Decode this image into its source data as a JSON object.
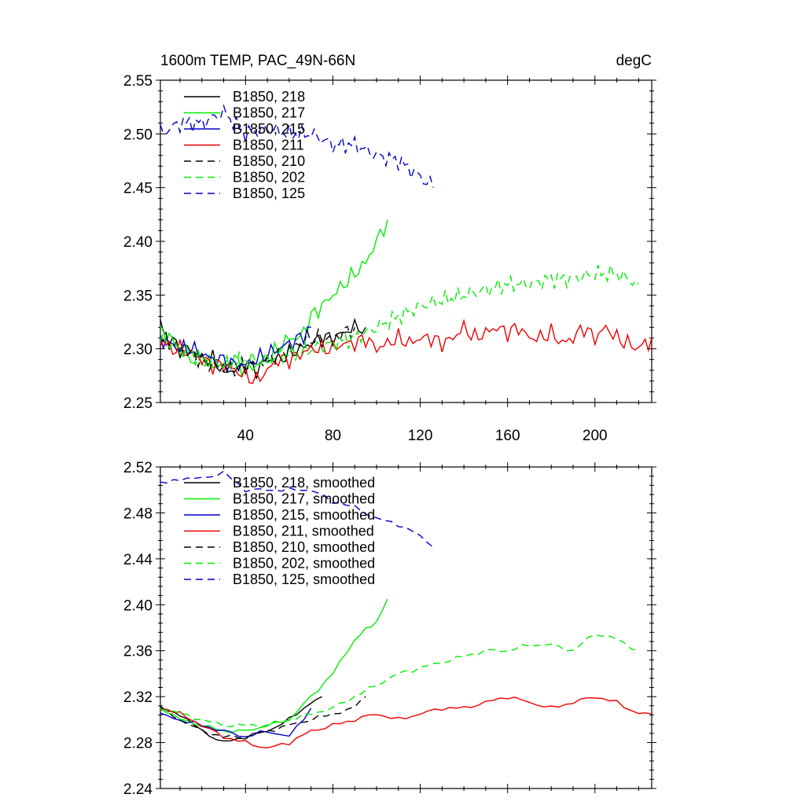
{
  "panels": [
    {
      "title_left": "1600m TEMP, PAC_49N-66N",
      "title_right": "degC",
      "ylim": [
        2.25,
        2.55
      ],
      "xlim": [
        1,
        226
      ],
      "y_ticks": [
        "2.25",
        "2.30",
        "2.35",
        "2.40",
        "2.45",
        "2.50",
        "2.55"
      ],
      "y_tick_values": [
        2.25,
        2.3,
        2.35,
        2.4,
        2.45,
        2.5,
        2.55
      ],
      "x_ticks": [
        "40",
        "80",
        "120",
        "160",
        "200"
      ],
      "x_tick_values": [
        40,
        80,
        120,
        160,
        200
      ],
      "show_x_labels": true
    },
    {
      "title_left": "",
      "title_right": "",
      "ylim": [
        2.24,
        2.52
      ],
      "xlim": [
        1,
        226
      ],
      "y_ticks": [
        "2.24",
        "2.28",
        "2.32",
        "2.36",
        "2.40",
        "2.44",
        "2.48",
        "2.52"
      ],
      "y_tick_values": [
        2.24,
        2.28,
        2.32,
        2.36,
        2.4,
        2.44,
        2.48,
        2.52
      ],
      "x_ticks": [],
      "x_tick_values": [
        40,
        80,
        120,
        160,
        200
      ],
      "show_x_labels": false
    }
  ],
  "colors": {
    "black": "#000000",
    "green": "#00ee00",
    "blue": "#0000cc",
    "red": "#ee0000"
  },
  "chart_data": [
    {
      "type": "line",
      "title": "1600m TEMP, PAC_49N-66N",
      "units": "degC",
      "ylim": [
        2.25,
        2.55
      ],
      "series": [
        {
          "name": "B1850, 218",
          "color": "#000000",
          "dash": false,
          "x": [
            1,
            5,
            10,
            15,
            20,
            25,
            30,
            35,
            40,
            45,
            50,
            55,
            60,
            65,
            70,
            75,
            80,
            85,
            90,
            95
          ],
          "y": [
            2.32,
            2.31,
            2.3,
            2.3,
            2.29,
            2.29,
            2.28,
            2.28,
            2.285,
            2.28,
            2.29,
            2.29,
            2.295,
            2.3,
            2.305,
            2.31,
            2.31,
            2.315,
            2.32,
            2.32
          ]
        },
        {
          "name": "B1850, 217",
          "color": "#00ee00",
          "dash": false,
          "x": [
            1,
            5,
            10,
            15,
            20,
            25,
            30,
            35,
            40,
            45,
            50,
            55,
            60,
            65,
            70,
            75,
            80,
            85,
            90,
            95,
            100,
            105
          ],
          "y": [
            2.32,
            2.31,
            2.3,
            2.29,
            2.29,
            2.285,
            2.285,
            2.29,
            2.28,
            2.285,
            2.29,
            2.3,
            2.31,
            2.31,
            2.33,
            2.34,
            2.35,
            2.36,
            2.37,
            2.38,
            2.4,
            2.42
          ]
        },
        {
          "name": "B1850, 215",
          "color": "#0000cc",
          "dash": false,
          "x": [
            1,
            5,
            10,
            15,
            20,
            25,
            30,
            35,
            40,
            45,
            50,
            55,
            60,
            65,
            70
          ],
          "y": [
            2.31,
            2.305,
            2.3,
            2.3,
            2.295,
            2.29,
            2.29,
            2.285,
            2.285,
            2.29,
            2.295,
            2.3,
            2.305,
            2.31,
            2.32
          ]
        },
        {
          "name": "B1850, 211",
          "color": "#ee0000",
          "dash": false,
          "x": [
            1,
            5,
            10,
            15,
            20,
            25,
            30,
            35,
            40,
            45,
            50,
            55,
            60,
            65,
            70,
            75,
            80,
            85,
            90,
            95,
            100,
            105,
            110,
            115,
            120,
            125,
            130,
            135,
            140,
            145,
            150,
            155,
            160,
            165,
            170,
            175,
            180,
            185,
            190,
            195,
            200,
            205,
            210,
            215,
            220,
            226
          ],
          "y": [
            2.31,
            2.3,
            2.3,
            2.295,
            2.29,
            2.285,
            2.285,
            2.28,
            2.275,
            2.27,
            2.28,
            2.29,
            2.29,
            2.295,
            2.3,
            2.3,
            2.3,
            2.305,
            2.305,
            2.31,
            2.3,
            2.305,
            2.31,
            2.305,
            2.31,
            2.31,
            2.305,
            2.31,
            2.32,
            2.31,
            2.315,
            2.32,
            2.315,
            2.32,
            2.31,
            2.31,
            2.315,
            2.305,
            2.31,
            2.32,
            2.31,
            2.32,
            2.31,
            2.305,
            2.3,
            2.31
          ]
        },
        {
          "name": "B1850, 210",
          "color": "#000000",
          "dash": true,
          "x": [
            1,
            5,
            10,
            15,
            20,
            25,
            30,
            35,
            40,
            45,
            50,
            55,
            60,
            65,
            70,
            75,
            80,
            85,
            90
          ],
          "y": [
            2.31,
            2.305,
            2.3,
            2.295,
            2.29,
            2.285,
            2.28,
            2.28,
            2.285,
            2.285,
            2.29,
            2.295,
            2.3,
            2.305,
            2.31,
            2.31,
            2.31,
            2.315,
            2.32
          ]
        },
        {
          "name": "B1850, 202",
          "color": "#00ee00",
          "dash": true,
          "x": [
            1,
            10,
            20,
            30,
            40,
            50,
            60,
            70,
            80,
            90,
            100,
            110,
            120,
            130,
            140,
            150,
            160,
            170,
            180,
            190,
            200,
            210,
            220
          ],
          "y": [
            2.31,
            2.3,
            2.29,
            2.285,
            2.29,
            2.29,
            2.295,
            2.3,
            2.305,
            2.31,
            2.32,
            2.33,
            2.34,
            2.345,
            2.35,
            2.355,
            2.36,
            2.36,
            2.365,
            2.365,
            2.37,
            2.37,
            2.36
          ]
        },
        {
          "name": "B1850, 125",
          "color": "#0000cc",
          "dash": true,
          "x": [
            1,
            10,
            20,
            30,
            40,
            50,
            60,
            70,
            80,
            90,
            100,
            110,
            120,
            126
          ],
          "y": [
            2.5,
            2.51,
            2.51,
            2.52,
            2.5,
            2.505,
            2.5,
            2.5,
            2.49,
            2.49,
            2.48,
            2.475,
            2.46,
            2.45
          ]
        }
      ]
    },
    {
      "type": "line",
      "ylim": [
        2.24,
        2.52
      ],
      "series": [
        {
          "name": "B1850, 218, smoothed",
          "color": "#000000",
          "dash": false,
          "x": [
            1,
            10,
            20,
            30,
            40,
            50,
            60,
            70,
            75
          ],
          "y": [
            2.31,
            2.305,
            2.29,
            2.28,
            2.285,
            2.29,
            2.3,
            2.315,
            2.32
          ]
        },
        {
          "name": "B1850, 217, smoothed",
          "color": "#00ee00",
          "dash": false,
          "x": [
            1,
            10,
            20,
            30,
            40,
            50,
            60,
            70,
            80,
            90,
            95,
            100,
            105
          ],
          "y": [
            2.31,
            2.3,
            2.295,
            2.29,
            2.29,
            2.295,
            2.3,
            2.32,
            2.34,
            2.37,
            2.38,
            2.385,
            2.405
          ]
        },
        {
          "name": "B1850, 215, smoothed",
          "color": "#0000cc",
          "dash": false,
          "x": [
            1,
            10,
            20,
            30,
            40,
            50,
            60,
            70
          ],
          "y": [
            2.305,
            2.3,
            2.295,
            2.29,
            2.285,
            2.29,
            2.285,
            2.31
          ]
        },
        {
          "name": "B1850, 211, smoothed",
          "color": "#ee0000",
          "dash": false,
          "x": [
            1,
            10,
            20,
            30,
            40,
            50,
            60,
            70,
            80,
            90,
            100,
            110,
            120,
            130,
            140,
            150,
            160,
            170,
            180,
            190,
            200,
            210,
            220,
            226
          ],
          "y": [
            2.31,
            2.305,
            2.295,
            2.285,
            2.28,
            2.275,
            2.28,
            2.29,
            2.295,
            2.3,
            2.305,
            2.3,
            2.305,
            2.31,
            2.31,
            2.315,
            2.32,
            2.315,
            2.31,
            2.315,
            2.32,
            2.315,
            2.305,
            2.305
          ]
        },
        {
          "name": "B1850, 210, smoothed",
          "color": "#000000",
          "dash": true,
          "x": [
            1,
            10,
            20,
            30,
            40,
            50,
            60,
            70,
            80,
            90,
            95
          ],
          "y": [
            2.31,
            2.3,
            2.29,
            2.285,
            2.285,
            2.29,
            2.295,
            2.3,
            2.305,
            2.31,
            2.32
          ]
        },
        {
          "name": "B1850, 202, smoothed",
          "color": "#00ee00",
          "dash": true,
          "x": [
            1,
            10,
            20,
            30,
            40,
            50,
            60,
            70,
            80,
            90,
            100,
            110,
            120,
            130,
            140,
            150,
            160,
            170,
            180,
            190,
            200,
            210,
            220
          ],
          "y": [
            2.31,
            2.305,
            2.3,
            2.295,
            2.295,
            2.295,
            2.3,
            2.305,
            2.31,
            2.32,
            2.33,
            2.34,
            2.345,
            2.35,
            2.355,
            2.36,
            2.36,
            2.365,
            2.365,
            2.36,
            2.375,
            2.37,
            2.36
          ]
        },
        {
          "name": "B1850, 125, smoothed",
          "color": "#0000cc",
          "dash": true,
          "x": [
            1,
            10,
            20,
            30,
            40,
            50,
            60,
            70,
            80,
            90,
            100,
            110,
            120,
            126
          ],
          "y": [
            2.505,
            2.51,
            2.51,
            2.515,
            2.5,
            2.5,
            2.5,
            2.5,
            2.49,
            2.485,
            2.475,
            2.47,
            2.46,
            2.45
          ]
        }
      ]
    }
  ]
}
